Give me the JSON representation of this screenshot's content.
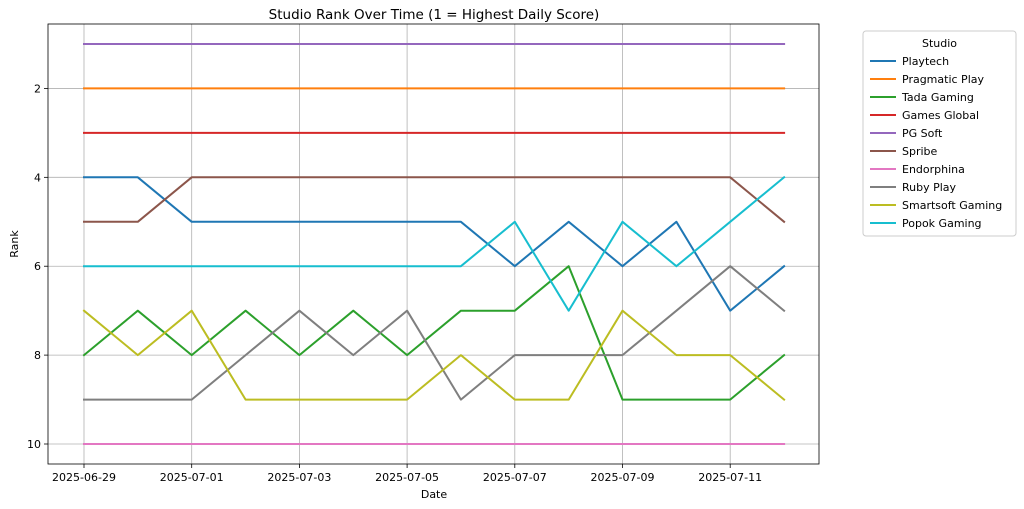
{
  "chart_data": {
    "type": "line",
    "title": "Studio Rank Over Time (1 = Highest Daily Score)",
    "xlabel": "Date",
    "ylabel": "Rank",
    "x": [
      "2025-06-29",
      "2025-06-30",
      "2025-07-01",
      "2025-07-02",
      "2025-07-03",
      "2025-07-04",
      "2025-07-05",
      "2025-07-06",
      "2025-07-07",
      "2025-07-08",
      "2025-07-09",
      "2025-07-10",
      "2025-07-11",
      "2025-07-12"
    ],
    "x_ticks": [
      "2025-06-29",
      "2025-07-01",
      "2025-07-03",
      "2025-07-05",
      "2025-07-07",
      "2025-07-09",
      "2025-07-11"
    ],
    "y_ticks": [
      2,
      4,
      6,
      8,
      10
    ],
    "ylim": [
      10.45,
      0.55
    ],
    "y_inverted": true,
    "grid": true,
    "legend_title": "Studio",
    "legend_position": "outside-right-top",
    "series": [
      {
        "name": "Playtech",
        "color": "#1f77b4",
        "values": [
          4,
          4,
          5,
          5,
          5,
          5,
          5,
          5,
          6,
          5,
          6,
          5,
          7,
          6
        ]
      },
      {
        "name": "Pragmatic Play",
        "color": "#ff7f0e",
        "values": [
          2,
          2,
          2,
          2,
          2,
          2,
          2,
          2,
          2,
          2,
          2,
          2,
          2,
          2
        ]
      },
      {
        "name": "Tada Gaming",
        "color": "#2ca02c",
        "values": [
          8,
          7,
          8,
          7,
          8,
          7,
          8,
          7,
          7,
          6,
          9,
          9,
          9,
          8
        ]
      },
      {
        "name": "Games Global",
        "color": "#d62728",
        "values": [
          3,
          3,
          3,
          3,
          3,
          3,
          3,
          3,
          3,
          3,
          3,
          3,
          3,
          3
        ]
      },
      {
        "name": "PG Soft",
        "color": "#9467bd",
        "values": [
          1,
          1,
          1,
          1,
          1,
          1,
          1,
          1,
          1,
          1,
          1,
          1,
          1,
          1
        ]
      },
      {
        "name": "Spribe",
        "color": "#8c564b",
        "values": [
          5,
          5,
          4,
          4,
          4,
          4,
          4,
          4,
          4,
          4,
          4,
          4,
          4,
          5
        ]
      },
      {
        "name": "Endorphina",
        "color": "#e377c2",
        "values": [
          10,
          10,
          10,
          10,
          10,
          10,
          10,
          10,
          10,
          10,
          10,
          10,
          10,
          10
        ]
      },
      {
        "name": "Ruby Play",
        "color": "#7f7f7f",
        "values": [
          9,
          9,
          9,
          8,
          7,
          8,
          7,
          9,
          8,
          8,
          8,
          7,
          6,
          7
        ]
      },
      {
        "name": "Smartsoft Gaming",
        "color": "#bcbd22",
        "values": [
          7,
          8,
          7,
          9,
          9,
          9,
          9,
          8,
          9,
          9,
          7,
          8,
          8,
          9
        ]
      },
      {
        "name": "Popok Gaming",
        "color": "#17becf",
        "values": [
          6,
          6,
          6,
          6,
          6,
          6,
          6,
          6,
          5,
          7,
          5,
          6,
          5,
          4
        ]
      }
    ]
  }
}
